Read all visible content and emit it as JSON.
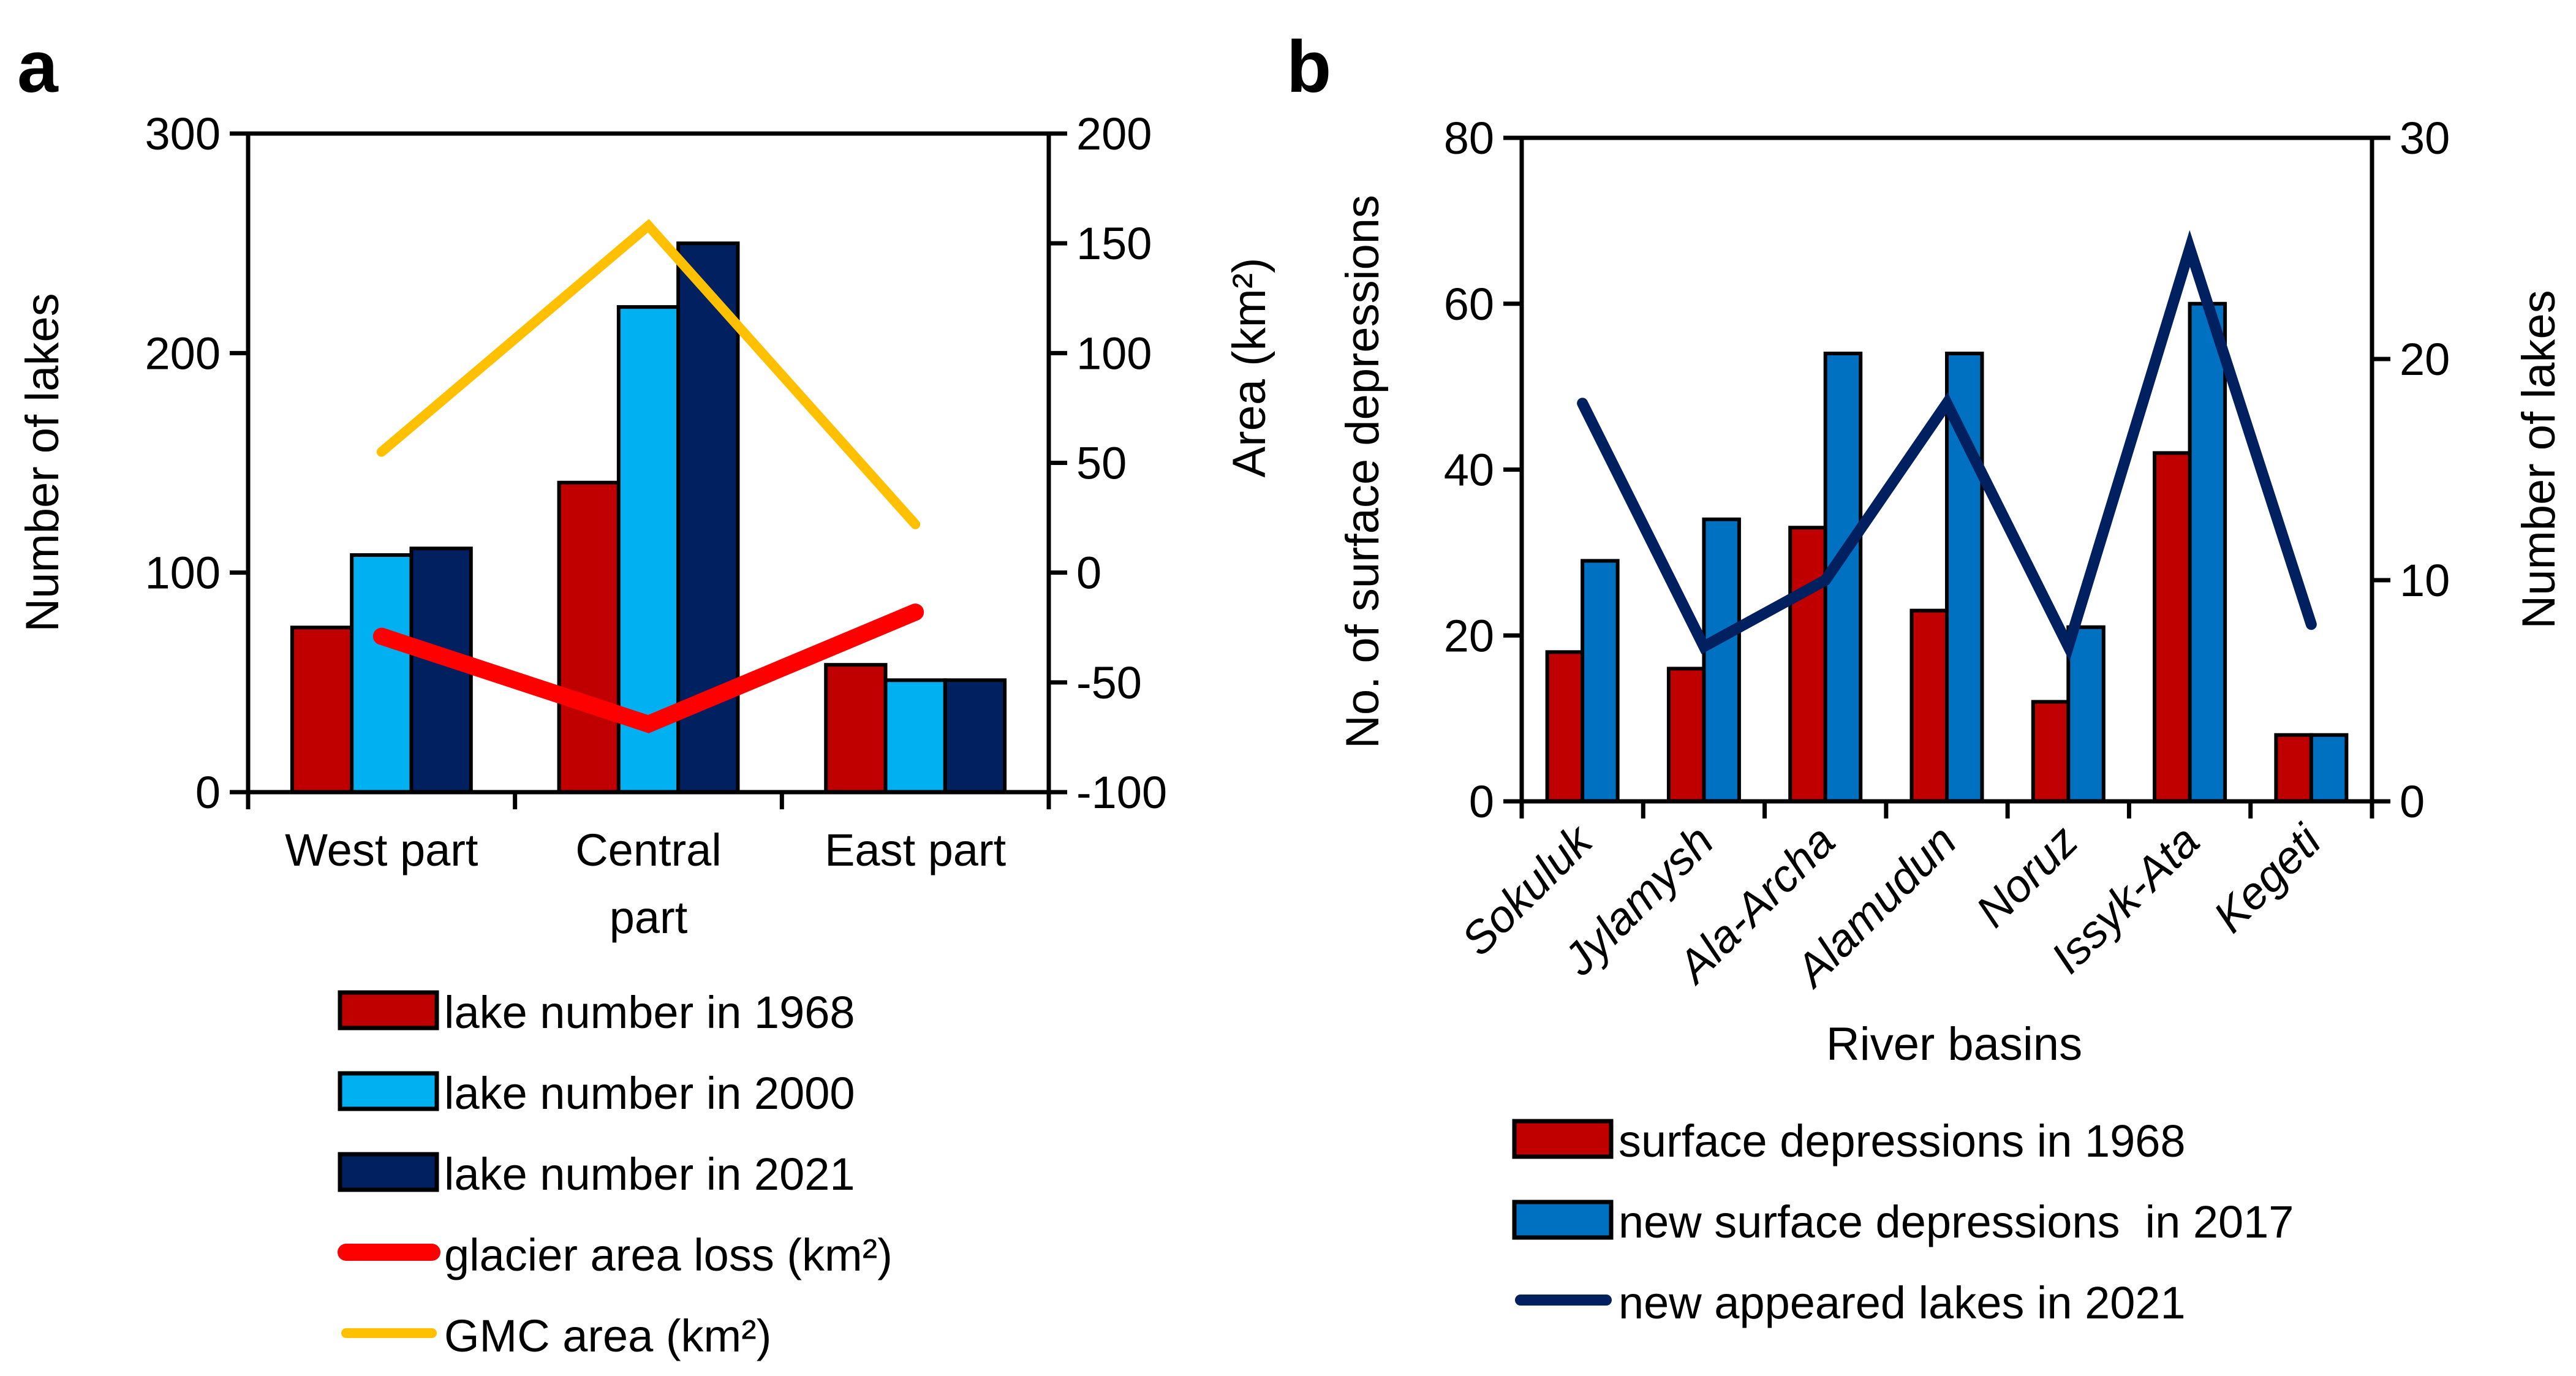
{
  "chart_data": [
    {
      "panel_label": "a",
      "type": "bar",
      "categories": [
        "West part",
        "Central part",
        "East part"
      ],
      "category_lines": [
        [
          "West part"
        ],
        [
          "Central",
          "part"
        ],
        [
          "East part"
        ]
      ],
      "ylabel": "Number of lakes",
      "ylim": [
        0,
        300
      ],
      "yticks": [
        "0",
        "100",
        "200",
        "300"
      ],
      "y2label": "Area (km²)",
      "y2lim": [
        -100,
        200
      ],
      "y2ticks": [
        "-100",
        "-50",
        "0",
        "50",
        "100",
        "150",
        "200"
      ],
      "series": [
        {
          "name": "lake number in 1968",
          "type": "bar",
          "axis": "left",
          "color": "#C00000",
          "values": [
            75,
            141,
            58
          ]
        },
        {
          "name": "lake number in 2000",
          "type": "bar",
          "axis": "left",
          "color": "#00B0F0",
          "values": [
            108,
            221,
            51
          ]
        },
        {
          "name": "lake number in 2021",
          "type": "bar",
          "axis": "left",
          "color": "#002060",
          "values": [
            111,
            250,
            51
          ]
        },
        {
          "name": "glacier area loss (km²)",
          "type": "line",
          "axis": "right",
          "color": "#FF0000",
          "values": [
            -29,
            -69,
            -18
          ]
        },
        {
          "name": "GMC area (km²)",
          "type": "line",
          "axis": "right",
          "color": "#FFC000",
          "values": [
            55,
            158,
            22
          ]
        }
      ],
      "legend_position": "bottom",
      "grid": false
    },
    {
      "panel_label": "b",
      "type": "bar",
      "categories": [
        "Sokuluk",
        "Jylamysh",
        "Ala-Archa",
        "Alamudun",
        "Noruz",
        "Issyk-Ata",
        "Kegeti"
      ],
      "xlabel": "River basins",
      "ylabel": "No. of surface depressions",
      "ylim": [
        0,
        80
      ],
      "yticks": [
        "0",
        "20",
        "40",
        "60",
        "80"
      ],
      "y2label": "Number of lakes",
      "y2lim": [
        0,
        30
      ],
      "y2ticks": [
        "0",
        "10",
        "20",
        "30"
      ],
      "series": [
        {
          "name": "surface depressions in 1968",
          "type": "bar",
          "axis": "left",
          "color": "#C00000",
          "values": [
            18,
            16,
            33,
            23,
            12,
            42,
            8
          ]
        },
        {
          "name": "new surface depressions  in 2017",
          "type": "bar",
          "axis": "left",
          "color": "#0070C0",
          "values": [
            29,
            34,
            54,
            54,
            21,
            60,
            8
          ]
        },
        {
          "name": "new appeared lakes in 2021",
          "type": "line",
          "axis": "right",
          "color": "#002060",
          "values": [
            18,
            7,
            10,
            18,
            7,
            25,
            8
          ]
        }
      ],
      "legend_position": "bottom",
      "grid": false
    }
  ]
}
